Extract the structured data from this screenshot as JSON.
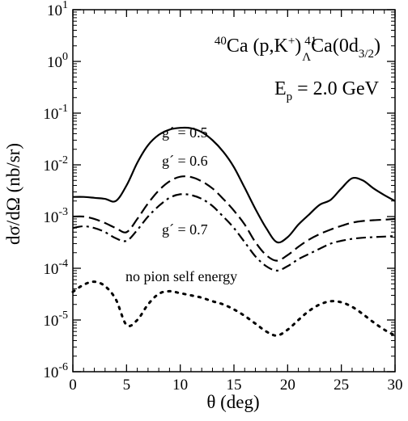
{
  "chart_data": {
    "type": "line",
    "title_parts": {
      "sup_a": "40",
      "text_a": "Ca (p,K",
      "sup_plus": "+",
      "text_b": ")",
      "sup_b": "41",
      "sub_lambda": "Λ",
      "text_c": "Ca(0d",
      "sub_state": "3/2",
      "text_d": ")"
    },
    "energy_parts": {
      "text_a": "E",
      "sub": "p",
      "text_b": " = 2.0 GeV"
    },
    "xlabel": "θ (deg)",
    "ylabel": "dσ/dΩ (nb/sr)",
    "xlim": [
      0,
      30
    ],
    "ylim_log10": [
      -6,
      1
    ],
    "yscale": "log",
    "x_ticks": [
      0,
      5,
      10,
      15,
      20,
      25,
      30
    ],
    "y_tick_exponents": [
      -6,
      -5,
      -4,
      -3,
      -2,
      -1,
      0,
      1
    ],
    "y_tick_base": "10",
    "series": [
      {
        "name": "g´ = 0.5",
        "style": "solid",
        "x": [
          0,
          1,
          2,
          3,
          4,
          5,
          6,
          7,
          8,
          9,
          10,
          11,
          12,
          13,
          14,
          15,
          16,
          17,
          18,
          19,
          20,
          21,
          22,
          23,
          24,
          25,
          26,
          27,
          28,
          29,
          30
        ],
        "y": [
          0.0024,
          0.0024,
          0.0023,
          0.0022,
          0.002,
          0.004,
          0.011,
          0.024,
          0.038,
          0.048,
          0.052,
          0.051,
          0.043,
          0.03,
          0.018,
          0.009,
          0.0036,
          0.0014,
          0.0006,
          0.00032,
          0.0004,
          0.0007,
          0.0011,
          0.0017,
          0.0021,
          0.0035,
          0.0055,
          0.005,
          0.0035,
          0.0026,
          0.002
        ]
      },
      {
        "name": "g´ = 0.6",
        "style": "dashed",
        "x": [
          0,
          1,
          2,
          3,
          4,
          5,
          6,
          7,
          8,
          9,
          10,
          11,
          12,
          13,
          14,
          15,
          16,
          17,
          18,
          19,
          20,
          21,
          22,
          23,
          24,
          25,
          26,
          27,
          28,
          29,
          30
        ],
        "y": [
          0.001,
          0.001,
          0.0009,
          0.00075,
          0.0006,
          0.0005,
          0.0009,
          0.0018,
          0.0032,
          0.0048,
          0.0059,
          0.0058,
          0.0048,
          0.0035,
          0.0022,
          0.0013,
          0.0007,
          0.00032,
          0.00018,
          0.00014,
          0.00018,
          0.00026,
          0.00036,
          0.00046,
          0.00056,
          0.00066,
          0.00076,
          0.00082,
          0.00085,
          0.00087,
          0.0009
        ]
      },
      {
        "name": "g´ = 0.7",
        "style": "dashdot",
        "x": [
          0,
          1,
          2,
          3,
          4,
          5,
          6,
          7,
          8,
          9,
          10,
          11,
          12,
          13,
          14,
          15,
          16,
          17,
          18,
          19,
          20,
          21,
          22,
          23,
          24,
          25,
          26,
          27,
          28,
          29,
          30
        ],
        "y": [
          0.0006,
          0.00065,
          0.0006,
          0.0005,
          0.00038,
          0.00034,
          0.00055,
          0.001,
          0.0016,
          0.0023,
          0.0027,
          0.0026,
          0.0022,
          0.0016,
          0.001,
          0.0006,
          0.00032,
          0.00017,
          0.00011,
          9e-05,
          0.00011,
          0.00015,
          0.00019,
          0.00024,
          0.0003,
          0.00034,
          0.00037,
          0.00039,
          0.0004,
          0.00041,
          0.00042
        ]
      },
      {
        "name": "no pion self energy",
        "style": "dotted",
        "x": [
          0,
          1,
          2,
          3,
          4,
          5,
          6,
          7,
          8,
          9,
          10,
          11,
          12,
          13,
          14,
          15,
          16,
          17,
          18,
          19,
          20,
          21,
          22,
          23,
          24,
          25,
          26,
          27,
          28,
          29,
          30
        ],
        "y": [
          3.5e-05,
          4.8e-05,
          5.5e-05,
          4.5e-05,
          2.5e-05,
          8e-06,
          1e-05,
          2e-05,
          3.2e-05,
          3.6e-05,
          3.3e-05,
          3e-05,
          2.7e-05,
          2.3e-05,
          2e-05,
          1.6e-05,
          1.2e-05,
          8.5e-06,
          6e-06,
          5e-06,
          6.5e-06,
          1e-05,
          1.5e-05,
          2e-05,
          2.3e-05,
          2.2e-05,
          1.8e-05,
          1.3e-05,
          9e-06,
          6.5e-06,
          5e-06
        ]
      }
    ],
    "annotations": [
      "g´ = 0.5",
      "g´ = 0.6",
      "g´ = 0.7",
      "no pion self energy"
    ],
    "grid": false,
    "legend": "none"
  }
}
